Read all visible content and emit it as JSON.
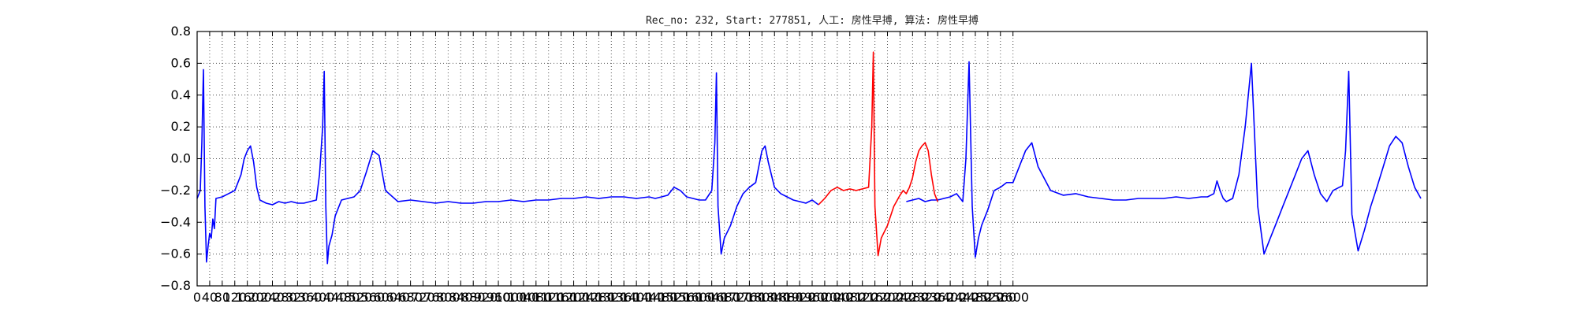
{
  "chart_data": {
    "type": "line",
    "title": "Rec_no: 232, Start: 277851, 人工: 房性早搏, 算法: 房性早搏",
    "xlabel": "",
    "ylabel": "",
    "xlim": [
      0,
      3920
    ],
    "ylim": [
      -0.8,
      0.8
    ],
    "grid": true,
    "yticks": [
      -0.8,
      -0.6,
      -0.4,
      -0.2,
      0.0,
      0.2,
      0.4,
      0.6,
      0.8
    ],
    "ytick_labels": [
      "−0.8",
      "−0.6",
      "−0.4",
      "−0.2",
      "0.0",
      "0.2",
      "0.4",
      "0.6",
      "0.8"
    ],
    "xticks": [
      0,
      40,
      80,
      120,
      160,
      200,
      240,
      280,
      320,
      360,
      400,
      440,
      480,
      520,
      560,
      600,
      640,
      680,
      720,
      760,
      800,
      840,
      880,
      920,
      960,
      1000,
      1040,
      1080,
      1120,
      1160,
      1200,
      1240,
      1280,
      1320,
      1360,
      1400,
      1440,
      1480,
      1520,
      1560,
      1600,
      1640,
      1680,
      1720,
      1760,
      1800,
      1840,
      1880,
      1920,
      1960,
      2000,
      2040,
      2080,
      2120,
      2160,
      2200,
      2240,
      2280,
      2320,
      2360,
      2400,
      2440,
      2480,
      2520,
      2560,
      2600
    ],
    "series": [
      {
        "color": "#0000ff",
        "segments": [
          {
            "x": [
              0,
              10,
              15,
              20,
              25,
              30,
              35,
              40,
              45,
              50,
              55,
              60,
              80,
              100,
              120,
              140,
              150,
              160,
              170,
              180,
              190,
              200,
              220,
              240,
              260,
              280,
              300,
              320,
              340,
              360,
              380,
              390,
              400,
              405,
              410,
              415,
              420,
              430,
              440,
              460,
              480,
              500,
              520,
              540,
              560,
              580,
              600,
              640,
              680,
              720,
              760,
              800,
              840,
              880,
              920,
              960,
              1000,
              1040,
              1080,
              1120,
              1160,
              1200,
              1240,
              1280,
              1320,
              1360,
              1400,
              1440,
              1460,
              1480,
              1500,
              1520,
              1540,
              1560,
              1580,
              1600,
              1620,
              1640,
              1650,
              1655,
              1660,
              1670,
              1680,
              1700,
              1720,
              1740,
              1760,
              1780,
              1790,
              1800,
              1810,
              1820,
              1840,
              1860,
              1880,
              1900,
              1920,
              1940,
              1960,
              1980
            ],
            "y": [
              -0.25,
              -0.2,
              0.1,
              0.56,
              -0.3,
              -0.65,
              -0.55,
              -0.47,
              -0.5,
              -0.38,
              -0.44,
              -0.25,
              -0.24,
              -0.22,
              -0.2,
              -0.1,
              0.0,
              0.05,
              0.08,
              -0.02,
              -0.18,
              -0.26,
              -0.28,
              -0.29,
              -0.27,
              -0.28,
              -0.27,
              -0.28,
              -0.28,
              -0.27,
              -0.26,
              -0.1,
              0.2,
              0.55,
              -0.3,
              -0.66,
              -0.55,
              -0.48,
              -0.36,
              -0.26,
              -0.25,
              -0.24,
              -0.2,
              -0.08,
              0.05,
              0.02,
              -0.2,
              -0.27,
              -0.26,
              -0.27,
              -0.28,
              -0.27,
              -0.28,
              -0.28,
              -0.27,
              -0.27,
              -0.26,
              -0.27,
              -0.26,
              -0.26,
              -0.25,
              -0.25,
              -0.24,
              -0.25,
              -0.24,
              -0.24,
              -0.25,
              -0.24,
              -0.25,
              -0.24,
              -0.23,
              -0.18,
              -0.2,
              -0.24,
              -0.25,
              -0.26,
              -0.26,
              -0.2,
              0.1,
              0.54,
              -0.3,
              -0.6,
              -0.5,
              -0.42,
              -0.3,
              -0.22,
              -0.18,
              -0.15,
              -0.05,
              0.05,
              0.08,
              -0.02,
              -0.18,
              -0.22,
              -0.24,
              -0.26,
              -0.27,
              -0.28,
              -0.26,
              -0.29
            ]
          },
          {
            "x": [
              2260,
              2280,
              2300,
              2320,
              2340,
              2360,
              2380,
              2400,
              2420,
              2440,
              2450,
              2460,
              2470,
              2480,
              2490,
              2500,
              2520,
              2540,
              2560,
              2580,
              2600,
              2620,
              2640,
              2660,
              2680,
              2720,
              2760,
              2800,
              2840,
              2880,
              2920,
              2960,
              3000,
              3040,
              3080,
              3120,
              3160,
              3200,
              3220,
              3240,
              3250,
              3260,
              3270,
              3280,
              3300,
              3320,
              3340,
              3360,
              3380,
              3400,
              3420,
              3440,
              3460,
              3480,
              3500,
              3520,
              3540,
              3560,
              3580,
              3600,
              3620,
              3640,
              3650,
              3660,
              3670,
              3680,
              3700,
              3720,
              3740,
              3760,
              3780,
              3800,
              3820,
              3840,
              3860,
              3880,
              3900
            ],
            "y": [
              -0.27,
              -0.26,
              -0.25,
              -0.27,
              -0.26,
              -0.26,
              -0.25,
              -0.24,
              -0.22,
              -0.27,
              0.0,
              0.61,
              -0.3,
              -0.62,
              -0.5,
              -0.42,
              -0.32,
              -0.2,
              -0.18,
              -0.15,
              -0.15,
              -0.05,
              0.05,
              0.1,
              -0.05,
              -0.2,
              -0.23,
              -0.22,
              -0.24,
              -0.25,
              -0.26,
              -0.26,
              -0.25,
              -0.25,
              -0.25,
              -0.24,
              -0.25,
              -0.24,
              -0.24,
              -0.22,
              -0.14,
              -0.2,
              -0.25,
              -0.27,
              -0.25,
              -0.1,
              0.2,
              0.6,
              -0.3,
              -0.6,
              -0.5,
              -0.4,
              -0.3,
              -0.2,
              -0.1,
              0.0,
              0.05,
              -0.1,
              -0.22,
              -0.27,
              -0.2,
              -0.18,
              -0.17,
              0.05,
              0.55,
              -0.35,
              -0.58,
              -0.45,
              -0.3,
              -0.18,
              -0.05,
              0.08,
              0.14,
              0.1,
              -0.05,
              -0.18,
              -0.25
            ]
          }
        ]
      },
      {
        "color": "#ff0000",
        "segments": [
          {
            "x": [
              1980,
              2000,
              2020,
              2040,
              2060,
              2080,
              2100,
              2120,
              2140,
              2150,
              2155,
              2160,
              2170,
              2180,
              2200,
              2220,
              2240,
              2250,
              2260,
              2270,
              2280,
              2290,
              2300,
              2310,
              2320,
              2330,
              2340,
              2350,
              2360
            ],
            "y": [
              -0.29,
              -0.25,
              -0.2,
              -0.18,
              -0.2,
              -0.19,
              -0.2,
              -0.19,
              -0.18,
              0.2,
              0.67,
              -0.3,
              -0.61,
              -0.5,
              -0.42,
              -0.3,
              -0.23,
              -0.2,
              -0.22,
              -0.18,
              -0.12,
              -0.02,
              0.05,
              0.08,
              0.1,
              0.05,
              -0.1,
              -0.22,
              -0.27
            ]
          }
        ]
      }
    ]
  }
}
